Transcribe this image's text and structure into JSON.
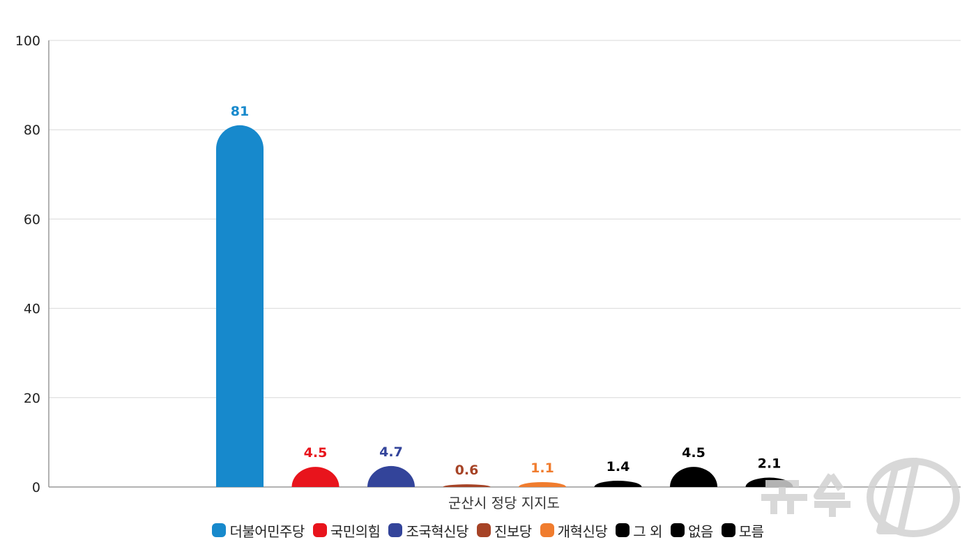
{
  "chart_data": {
    "type": "bar",
    "xlabel": "군산시 정당 지지도",
    "ylim": [
      0,
      100
    ],
    "yticks": [
      "0",
      "20",
      "40",
      "60",
      "80",
      "100"
    ],
    "grid": true,
    "legend_position": "bottom",
    "series": [
      {
        "name": "더불어민주당",
        "value": 81,
        "label": "81",
        "color": "#1789cc"
      },
      {
        "name": "국민의힘",
        "value": 4.5,
        "label": "4.5",
        "color": "#e8141c"
      },
      {
        "name": "조국혁신당",
        "value": 4.7,
        "label": "4.7",
        "color": "#33449a"
      },
      {
        "name": "진보당",
        "value": 0.6,
        "label": "0.6",
        "color": "#a64326"
      },
      {
        "name": "개혁신당",
        "value": 1.1,
        "label": "1.1",
        "color": "#f07c2e"
      },
      {
        "name": "그 외",
        "value": 1.4,
        "label": "1.4",
        "color": "#000000"
      },
      {
        "name": "없음",
        "value": 4.5,
        "label": "4.5",
        "color": "#000000"
      },
      {
        "name": "모름",
        "value": 2.1,
        "label": "2.1",
        "color": "#000000"
      }
    ]
  },
  "watermark": {
    "text": "뉴스1",
    "color": "#d0d0d0"
  }
}
